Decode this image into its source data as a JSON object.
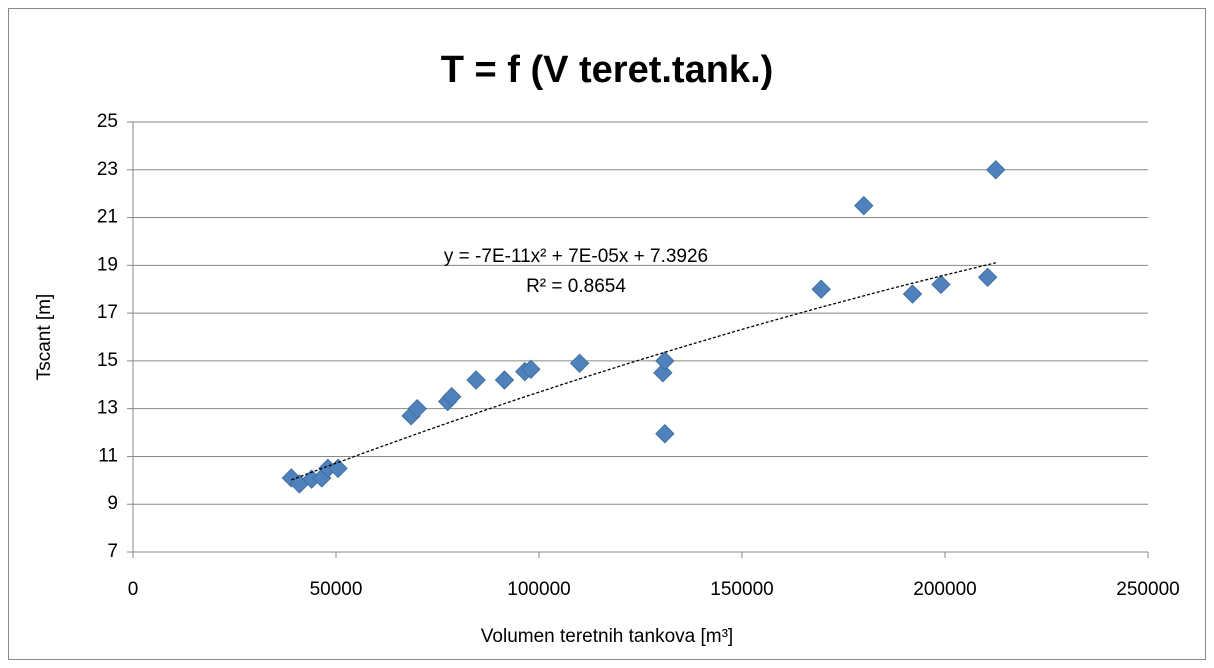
{
  "chart_data": {
    "type": "scatter",
    "title": "T = f (V teret.tank.)",
    "xlabel": "Volumen teretnih tankova [m³]",
    "ylabel": "Tscant [m]",
    "series": [
      {
        "name": "Tscant",
        "color": "#4f81bd",
        "x": [
          39000,
          41000,
          44000,
          46500,
          48000,
          50500,
          68500,
          70000,
          77500,
          78500,
          84500,
          91500,
          96500,
          98000,
          110000,
          130500,
          131000,
          131000,
          169500,
          180000,
          192000,
          199000,
          210500,
          212500
        ],
        "values": [
          10.1,
          9.85,
          10.05,
          10.1,
          10.5,
          10.5,
          12.7,
          13.0,
          13.3,
          13.5,
          14.2,
          14.2,
          14.55,
          14.65,
          14.9,
          14.5,
          15.0,
          11.95,
          18.0,
          21.5,
          17.8,
          18.2,
          18.5,
          23.0
        ]
      }
    ],
    "trendline": {
      "equation": "y = -7E-11x² + 7E-05x + 7.3926",
      "r_squared": "R² = 0.8654",
      "coefficients": [
        -7e-11,
        7e-05,
        7.3926
      ]
    },
    "xlim": [
      0,
      250000
    ],
    "xticks": [
      0,
      50000,
      100000,
      150000,
      200000,
      250000
    ],
    "ylim": [
      7,
      25
    ],
    "yticks": [
      7,
      9,
      11,
      13,
      15,
      17,
      19,
      21,
      23,
      25
    ],
    "grid": true
  }
}
